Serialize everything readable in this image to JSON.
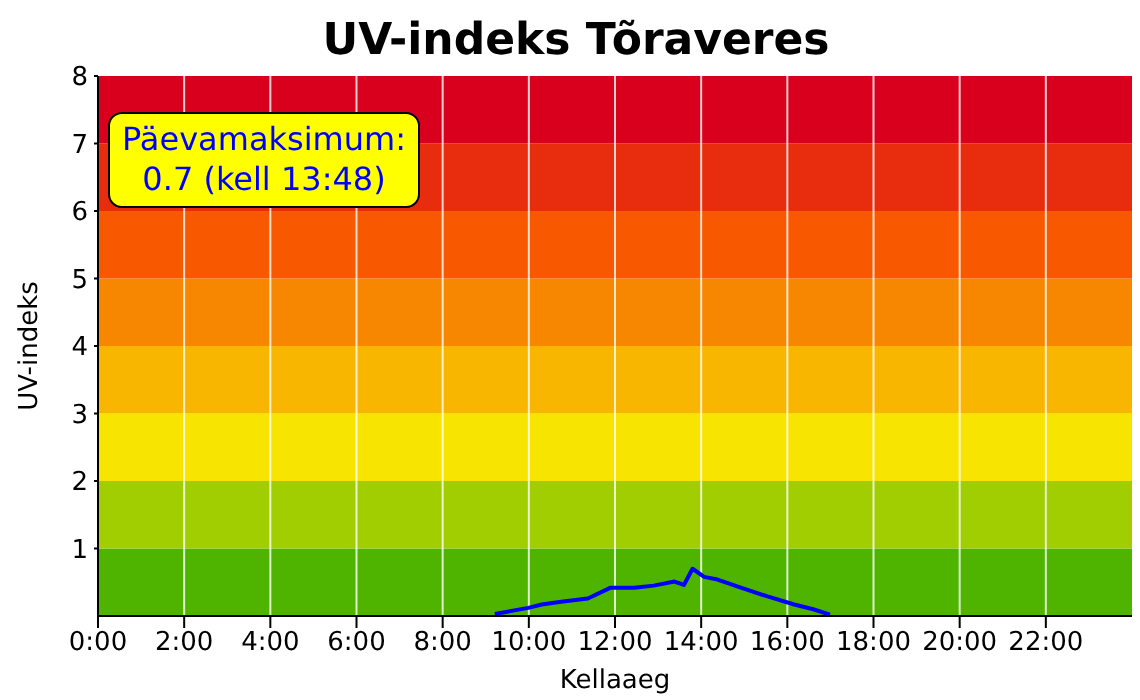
{
  "chart_data": {
    "type": "line",
    "title": "UV-indeks Tõraveres",
    "xlabel": "Kellaaeg",
    "ylabel": "UV-indeks",
    "x": [
      9.21,
      9.99,
      10.3,
      10.75,
      11.37,
      11.9,
      12.45,
      12.9,
      13.38,
      13.6,
      13.8,
      14.07,
      14.38,
      14.92,
      15.54,
      16.16,
      16.6,
      16.99
    ],
    "series": [
      {
        "color": "#0000ff",
        "values": [
          0.03,
          0.12,
          0.17,
          0.21,
          0.26,
          0.42,
          0.42,
          0.45,
          0.51,
          0.46,
          0.7,
          0.58,
          0.54,
          0.42,
          0.29,
          0.17,
          0.1,
          0.02
        ]
      }
    ],
    "xlim": [
      0,
      24
    ],
    "xticks": [
      {
        "value": 0,
        "label": "0:00"
      },
      {
        "value": 2,
        "label": "2:00"
      },
      {
        "value": 4,
        "label": "4:00"
      },
      {
        "value": 6,
        "label": "6:00"
      },
      {
        "value": 8,
        "label": "8:00"
      },
      {
        "value": 10,
        "label": "10:00"
      },
      {
        "value": 12,
        "label": "12:00"
      },
      {
        "value": 14,
        "label": "14:00"
      },
      {
        "value": 16,
        "label": "16:00"
      },
      {
        "value": 18,
        "label": "18:00"
      },
      {
        "value": 20,
        "label": "20:00"
      },
      {
        "value": 22,
        "label": "22:00"
      }
    ],
    "ylim": [
      0,
      8
    ],
    "yticks": [
      1,
      2,
      3,
      4,
      5,
      6,
      7,
      8
    ],
    "grid": "x",
    "legend": false,
    "marker": "none",
    "line_style": "solid",
    "bands": [
      {
        "axis": "y",
        "from": 0,
        "to": 1,
        "color": "#4eb400"
      },
      {
        "axis": "y",
        "from": 1,
        "to": 2,
        "color": "#a0ce00"
      },
      {
        "axis": "y",
        "from": 2,
        "to": 3,
        "color": "#f7e400"
      },
      {
        "axis": "y",
        "from": 3,
        "to": 4,
        "color": "#f8b600"
      },
      {
        "axis": "y",
        "from": 4,
        "to": 5,
        "color": "#f88700"
      },
      {
        "axis": "y",
        "from": 5,
        "to": 6,
        "color": "#f85900"
      },
      {
        "axis": "y",
        "from": 6,
        "to": 7,
        "color": "#e82c0e"
      },
      {
        "axis": "y",
        "from": 7,
        "to": 8,
        "color": "#d8001d"
      }
    ],
    "annotations": [
      "Päevamaksimum:\n0.7 (kell 13:48)"
    ]
  }
}
